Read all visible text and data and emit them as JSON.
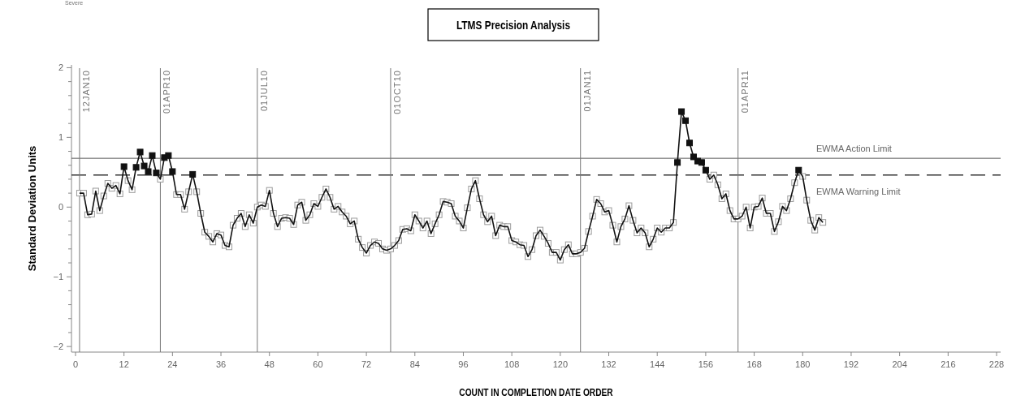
{
  "chart_data": {
    "type": "line",
    "title": "LTMS Precision Analysis",
    "xlabel": "COUNT IN COMPLETION DATE ORDER",
    "ylabel": "Standard Deviation Units",
    "annotations": [
      "Severe"
    ],
    "xlim": [
      -1,
      229
    ],
    "ylim": [
      -2.08,
      2.04
    ],
    "xticks": [
      0,
      12,
      24,
      36,
      48,
      60,
      72,
      84,
      96,
      108,
      120,
      132,
      144,
      156,
      168,
      180,
      192,
      204,
      216,
      228
    ],
    "yticks": [
      -2,
      {
        "value": -1.8,
        "label": null
      },
      {
        "value": -1.6,
        "label": null
      },
      {
        "value": -1.4,
        "label": null
      },
      {
        "value": -1.2,
        "label": null
      },
      -1,
      {
        "value": -0.8,
        "label": null
      },
      {
        "value": -0.6,
        "label": null
      },
      {
        "value": -0.4,
        "label": null
      },
      {
        "value": -0.2,
        "label": null
      },
      0,
      {
        "value": 0.2,
        "label": null
      },
      {
        "value": 0.4,
        "label": null
      },
      {
        "value": 0.6,
        "label": null
      },
      {
        "value": 0.8,
        "label": null
      },
      1,
      {
        "value": 1.2,
        "label": null
      },
      {
        "value": 1.4,
        "label": null
      },
      {
        "value": 1.6,
        "label": null
      },
      {
        "value": 1.8,
        "label": null
      },
      2
    ],
    "grid": false,
    "marker": "square",
    "line_style": "solid",
    "ref_lines": [
      {
        "axis": "y",
        "value": 0.7,
        "label": "EWMA Action Limit",
        "color": "#555555",
        "line_style": "solid"
      },
      {
        "axis": "y",
        "value": 0.46,
        "label": "EWMA Warning Limit",
        "color": "#333333",
        "line_style": "dashed"
      },
      {
        "axis": "x",
        "value": 1,
        "label": "12JAN10",
        "color": "#777777",
        "line_style": "solid"
      },
      {
        "axis": "x",
        "value": 21,
        "label": "01APR10",
        "color": "#777777",
        "line_style": "solid"
      },
      {
        "axis": "x",
        "value": 45,
        "label": "01JUL10",
        "color": "#777777",
        "line_style": "solid"
      },
      {
        "axis": "x",
        "value": 78,
        "label": "01OCT10",
        "color": "#777777",
        "line_style": "solid"
      },
      {
        "axis": "x",
        "value": 125,
        "label": "01JAN11",
        "color": "#777777",
        "line_style": "solid"
      },
      {
        "axis": "x",
        "value": 164,
        "label": "01APR11",
        "color": "#777777",
        "line_style": "solid"
      }
    ],
    "series": [
      {
        "color": "#111111",
        "x": [
          1,
          2,
          3,
          4,
          5,
          6,
          7,
          8,
          9,
          10,
          11,
          12,
          13,
          14,
          15,
          16,
          17,
          18,
          19,
          20,
          21,
          22,
          23,
          24,
          25,
          26,
          27,
          28,
          29,
          30,
          31,
          32,
          33,
          34,
          35,
          36,
          37,
          38,
          39,
          40,
          41,
          42,
          43,
          44,
          45,
          46,
          47,
          48,
          49,
          50,
          51,
          52,
          53,
          54,
          55,
          56,
          57,
          58,
          59,
          60,
          61,
          62,
          63,
          64,
          65,
          66,
          67,
          68,
          69,
          70,
          71,
          72,
          73,
          74,
          75,
          76,
          77,
          78,
          79,
          80,
          81,
          82,
          83,
          84,
          85,
          86,
          87,
          88,
          89,
          90,
          91,
          92,
          93,
          94,
          95,
          96,
          97,
          98,
          99,
          100,
          101,
          102,
          103,
          104,
          105,
          106,
          107,
          108,
          109,
          110,
          111,
          112,
          113,
          114,
          115,
          116,
          117,
          118,
          119,
          120,
          121,
          122,
          123,
          124,
          125,
          126,
          127,
          128,
          129,
          130,
          131,
          132,
          133,
          134,
          135,
          136,
          137,
          138,
          139,
          140,
          141,
          142,
          143,
          144,
          145,
          146,
          147,
          148,
          149,
          150,
          151,
          152,
          153,
          154,
          155,
          156,
          157,
          158,
          159,
          160,
          161,
          162,
          163,
          164,
          165,
          166,
          167,
          168,
          169,
          170,
          171,
          172,
          173,
          174,
          175,
          176,
          177,
          178,
          179,
          180,
          181,
          182,
          183,
          184,
          185
        ],
        "values": [
          0.2,
          0.2,
          -0.11,
          -0.1,
          0.23,
          -0.05,
          0.16,
          0.34,
          0.27,
          0.31,
          0.19,
          0.58,
          0.38,
          0.25,
          0.57,
          0.79,
          0.59,
          0.51,
          0.74,
          0.49,
          0.4,
          0.71,
          0.74,
          0.51,
          0.18,
          0.18,
          -0.03,
          0.22,
          0.47,
          0.22,
          -0.09,
          -0.36,
          -0.42,
          -0.5,
          -0.38,
          -0.4,
          -0.55,
          -0.57,
          -0.26,
          -0.16,
          -0.09,
          -0.28,
          -0.11,
          -0.23,
          0,
          0.03,
          0.01,
          0.24,
          -0.09,
          -0.28,
          -0.16,
          -0.15,
          -0.16,
          -0.25,
          0.03,
          0.07,
          -0.19,
          -0.11,
          0.05,
          0.01,
          0.14,
          0.26,
          0.14,
          -0.03,
          0.01,
          -0.07,
          -0.13,
          -0.24,
          -0.2,
          -0.46,
          -0.58,
          -0.66,
          -0.55,
          -0.5,
          -0.52,
          -0.6,
          -0.62,
          -0.6,
          -0.55,
          -0.48,
          -0.32,
          -0.31,
          -0.34,
          -0.11,
          -0.2,
          -0.3,
          -0.2,
          -0.38,
          -0.24,
          -0.11,
          0.08,
          0.07,
          0.05,
          -0.13,
          -0.2,
          -0.3,
          -0.01,
          0.26,
          0.38,
          0.12,
          -0.11,
          -0.21,
          -0.13,
          -0.41,
          -0.26,
          -0.28,
          -0.28,
          -0.48,
          -0.5,
          -0.54,
          -0.55,
          -0.71,
          -0.61,
          -0.41,
          -0.33,
          -0.42,
          -0.52,
          -0.65,
          -0.65,
          -0.76,
          -0.61,
          -0.54,
          -0.67,
          -0.67,
          -0.65,
          -0.59,
          -0.35,
          -0.13,
          0.11,
          0.05,
          -0.07,
          -0.05,
          -0.26,
          -0.5,
          -0.28,
          -0.17,
          0.02,
          -0.19,
          -0.37,
          -0.3,
          -0.37,
          -0.57,
          -0.46,
          -0.3,
          -0.36,
          -0.3,
          -0.3,
          -0.22,
          0.64,
          1.37,
          1.24,
          0.92,
          0.72,
          0.66,
          0.64,
          0.53,
          0.4,
          0.46,
          0.32,
          0.12,
          0.19,
          -0.05,
          -0.17,
          -0.17,
          -0.13,
          0,
          -0.3,
          0,
          0.01,
          0.13,
          -0.09,
          -0.09,
          -0.35,
          -0.21,
          0.01,
          -0.05,
          0.12,
          0.35,
          0.53,
          0.44,
          0.1,
          -0.19,
          -0.33,
          -0.15,
          -0.22
        ]
      }
    ]
  }
}
